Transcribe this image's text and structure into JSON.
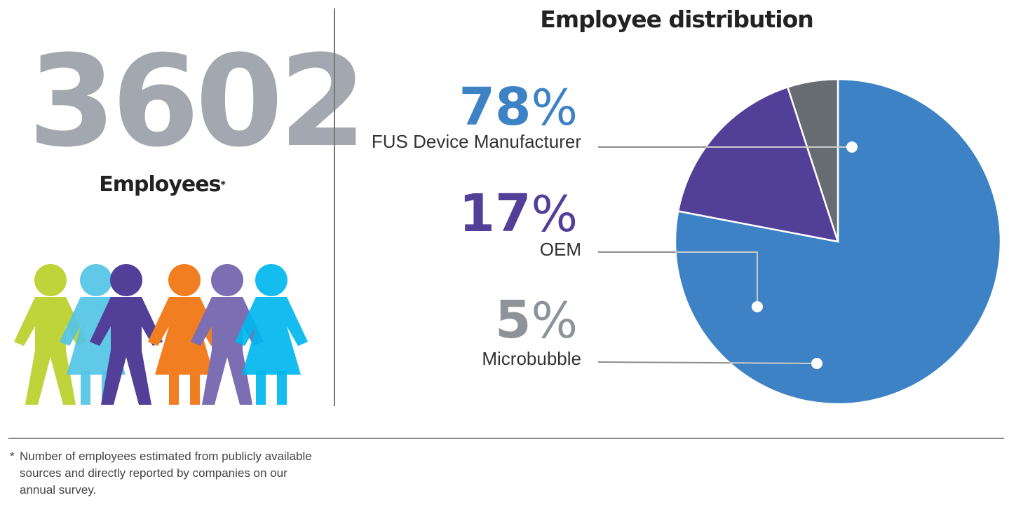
{
  "headline": {
    "number": "3602",
    "label": "Employees",
    "asterisk": "*"
  },
  "footnote": {
    "asterisk": "*",
    "text": "Number of employees estimated from publicly available sources and directly reported by companies on our annual survey."
  },
  "people_icon_colors": [
    "#bed43a",
    "#54c4e6",
    "#523f98",
    "#f27e22",
    "#7b6eb2",
    "#00b6ee"
  ],
  "chart_data": {
    "type": "pie",
    "title": "Employee distribution",
    "unit": "%",
    "series": [
      {
        "name": "FUS Device Manufacturer",
        "value": 78,
        "label": "78",
        "color": "#3d82c4"
      },
      {
        "name": "OEM",
        "value": 17,
        "label": "17",
        "color": "#523f98"
      },
      {
        "name": "Microbubble",
        "value": 5,
        "label": "5",
        "color": "#676b72"
      }
    ],
    "percent_sign": "%",
    "label_text_colors": [
      "#3d82c4",
      "#523f98",
      "#8e939a"
    ],
    "start_angle": "12 o'clock",
    "direction": "clockwise",
    "legend_placement": "left"
  }
}
